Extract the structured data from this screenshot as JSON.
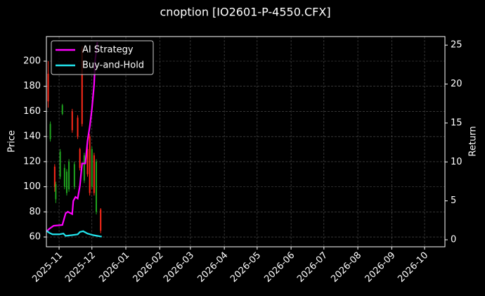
{
  "chart_data": {
    "type": "candlestick",
    "title": "cnoption [IO2601-P-4550.CFX]",
    "ylabel": "Price",
    "y2label": "Return",
    "x": [
      -10,
      -8,
      -4,
      -3,
      1,
      3,
      5,
      7,
      9,
      12,
      14,
      17,
      19,
      21,
      23,
      26,
      28,
      30,
      32,
      34,
      38
    ],
    "open": [
      168,
      150,
      100,
      102,
      128,
      165,
      115,
      112,
      120,
      145,
      118,
      140,
      115,
      150,
      125,
      110,
      95,
      130,
      95,
      120,
      65
    ],
    "high": [
      200,
      152,
      118,
      104,
      130,
      166,
      118,
      114,
      122,
      162,
      120,
      157,
      131,
      212,
      127,
      132,
      142,
      132,
      127,
      122,
      83
    ],
    "low": [
      163,
      136,
      96,
      87,
      106,
      157,
      98,
      93,
      96,
      143,
      98,
      138,
      113,
      148,
      103,
      108,
      93,
      98,
      93,
      78,
      63
    ],
    "close": [
      190,
      138,
      116,
      90,
      108,
      158,
      100,
      95,
      98,
      160,
      100,
      155,
      130,
      210,
      105,
      130,
      140,
      100,
      125,
      80,
      82
    ],
    "up_color": "#ff2a1a",
    "down_color": "#1fa51f",
    "series": [
      {
        "name": "AI Strategy",
        "color": "#ff00ff",
        "axis": "y2",
        "x": [
          -12,
          -9,
          -5,
          3,
          6,
          8,
          12,
          13,
          15,
          17,
          19,
          21,
          24,
          26,
          28,
          30,
          32,
          33,
          35
        ],
        "values": [
          1.0,
          1.4,
          1.8,
          1.9,
          3.4,
          3.6,
          3.3,
          5.0,
          5.5,
          5.3,
          6.9,
          9.8,
          9.8,
          12.7,
          14.5,
          16.8,
          19.9,
          23.1,
          25.4
        ]
      },
      {
        "name": "Buy-and-Hold",
        "color": "#22e5ee",
        "axis": "y2",
        "x": [
          -12,
          -9,
          -6,
          0,
          4,
          6,
          12,
          17,
          19,
          22,
          26,
          31,
          35,
          37,
          39
        ],
        "values": [
          1.2,
          0.9,
          0.7,
          0.7,
          0.8,
          0.5,
          0.6,
          0.7,
          1.0,
          1.1,
          0.8,
          0.6,
          0.5,
          0.45,
          0.4
        ]
      }
    ],
    "xlim": [
      -11.6,
      352.6
    ],
    "xticks": [
      {
        "value": 0,
        "label": "2025-11"
      },
      {
        "value": 30,
        "label": "2025-12"
      },
      {
        "value": 61,
        "label": "2026-01"
      },
      {
        "value": 92,
        "label": "2026-02"
      },
      {
        "value": 120,
        "label": "2026-03"
      },
      {
        "value": 151,
        "label": "2026-04"
      },
      {
        "value": 181,
        "label": "2026-05"
      },
      {
        "value": 212,
        "label": "2026-06"
      },
      {
        "value": 242,
        "label": "2026-07"
      },
      {
        "value": 273,
        "label": "2026-08"
      },
      {
        "value": 304,
        "label": "2026-09"
      },
      {
        "value": 334,
        "label": "2026-10"
      }
    ],
    "ylim": [
      52.2,
      219.6
    ],
    "yticks": [
      60,
      80,
      100,
      120,
      140,
      160,
      180,
      200
    ],
    "y2lim": [
      -0.9,
      26.1
    ],
    "y2ticks": [
      0,
      5,
      10,
      15,
      20,
      25
    ],
    "grid": true,
    "legend": "upper left"
  }
}
